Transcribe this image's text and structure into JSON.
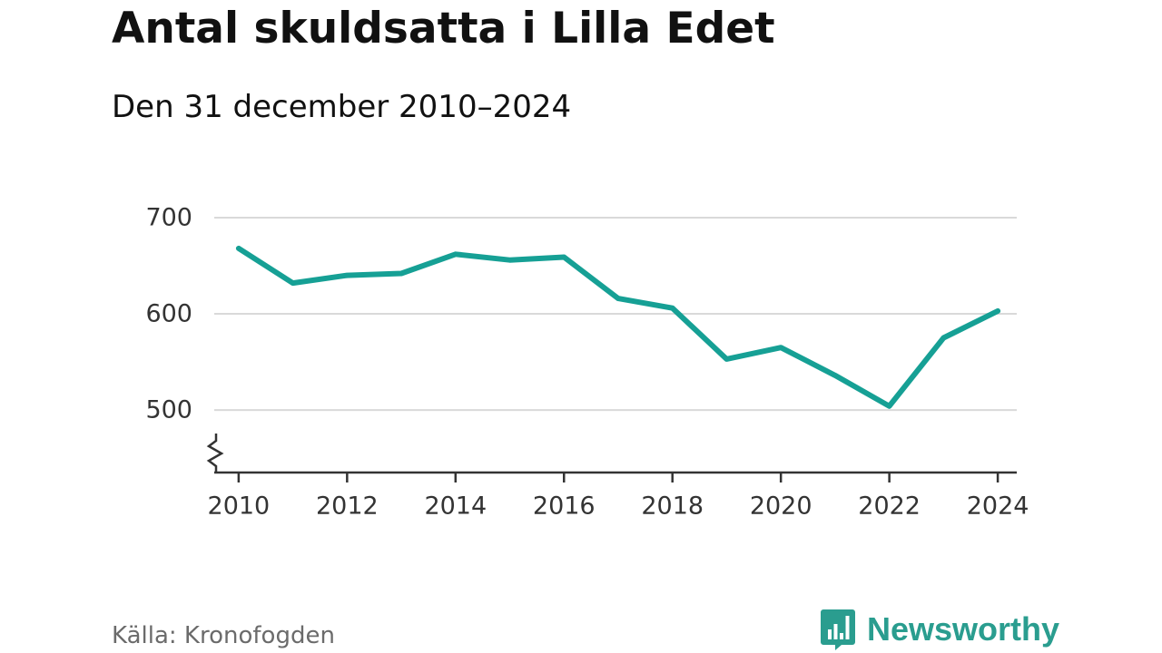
{
  "header": {
    "title": "Antal skuldsatta i Lilla Edet",
    "subtitle": "Den 31 december 2010–2024"
  },
  "footer": {
    "source": "Källa: Kronofogden",
    "brand": "Newsworthy",
    "brand_icon": "bar-chart-logo-icon"
  },
  "colors": {
    "line": "#16a095",
    "grid": "#d9d9d9",
    "axis": "#333333",
    "brand": "#2a9d8f"
  },
  "chart_data": {
    "type": "line",
    "title": "Antal skuldsatta i Lilla Edet",
    "subtitle": "Den 31 december 2010–2024",
    "xlabel": "",
    "ylabel": "",
    "x": [
      2010,
      2011,
      2012,
      2013,
      2014,
      2015,
      2016,
      2017,
      2018,
      2019,
      2020,
      2021,
      2022,
      2023,
      2024
    ],
    "values": [
      668,
      632,
      640,
      642,
      662,
      656,
      659,
      616,
      606,
      553,
      565,
      536,
      504,
      575,
      603
    ],
    "xticks": [
      "2010",
      "2012",
      "2014",
      "2016",
      "2018",
      "2020",
      "2022",
      "2024"
    ],
    "yticks": [
      "500",
      "600",
      "700"
    ],
    "ylim": [
      435,
      700
    ],
    "xlim": [
      2009.55,
      2024.35
    ],
    "grid": true,
    "axis_break": true
  }
}
